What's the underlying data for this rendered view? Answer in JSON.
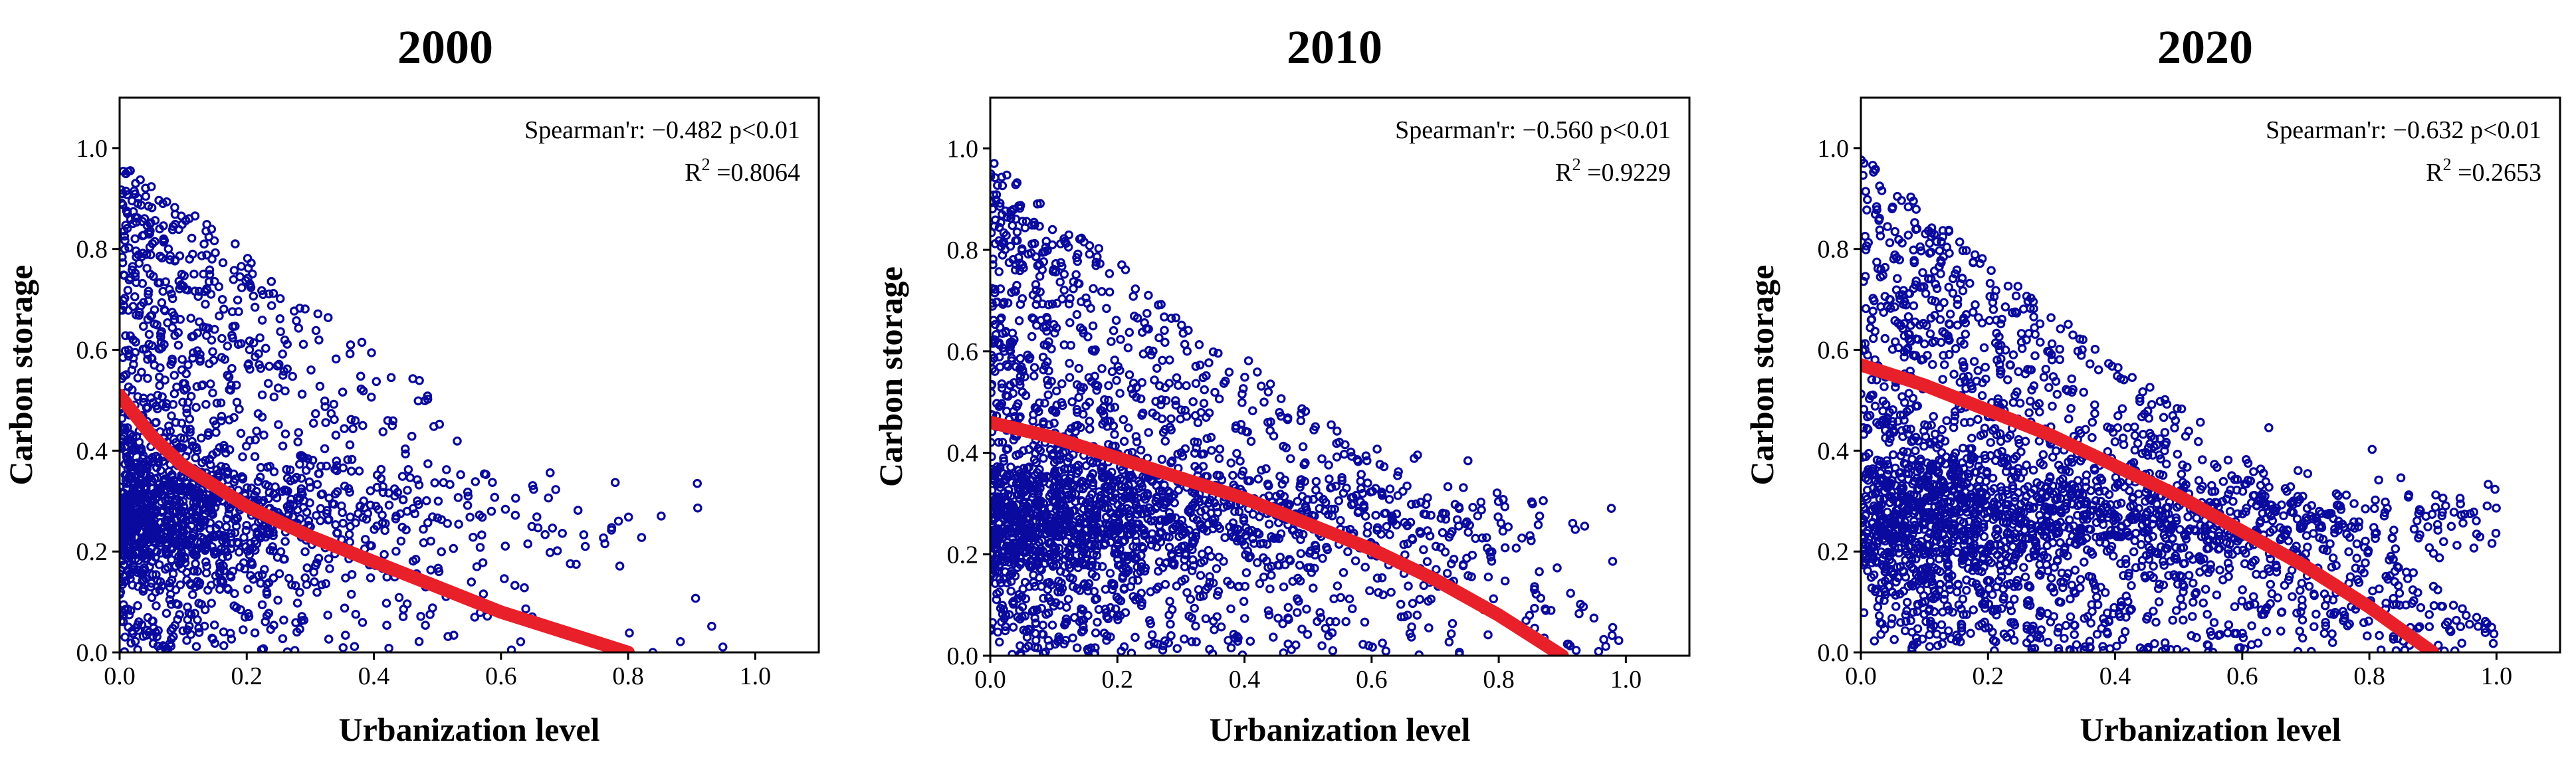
{
  "figure": {
    "palette": {
      "point": "#0a0a9e",
      "fit": "#e8202a",
      "axis": "#000000"
    }
  },
  "chart_data": [
    {
      "type": "scatter",
      "title": "2000",
      "xlabel": "Urbanization level",
      "ylabel": "Carbon storage",
      "xlim": [
        0,
        1.1
      ],
      "ylim": [
        0,
        1.1
      ],
      "xticks": [
        0.0,
        0.2,
        0.4,
        0.6,
        0.8,
        1.0
      ],
      "xtick_labels": [
        "0.0",
        "0.2",
        "0.4",
        "0.6",
        "0.8",
        "1.0"
      ],
      "yticks": [
        0.0,
        0.2,
        0.4,
        0.6,
        0.8,
        1.0
      ],
      "ytick_labels": [
        "0.0",
        "0.2",
        "0.4",
        "0.6",
        "0.8",
        "1.0"
      ],
      "annotation": {
        "spearman": "Spearman'r: −0.482  p<0.01",
        "r2_prefix": "R",
        "r2_sup": "2",
        "r2_value": " =0.8064"
      },
      "fit_line": {
        "x": [
          0.0,
          0.05,
          0.1,
          0.2,
          0.3,
          0.4,
          0.5,
          0.6,
          0.7,
          0.8
        ],
        "y": [
          0.51,
          0.43,
          0.37,
          0.29,
          0.23,
          0.18,
          0.13,
          0.08,
          0.04,
          0.0
        ]
      },
      "scatter_profile": {
        "n_points": 1800,
        "x_scale": 0.17,
        "x_max": 1.0,
        "band_y": 0.27,
        "band_spread": 0.07,
        "upper_extent": 0.95,
        "upper_decay": 1.0,
        "seed": 11
      }
    },
    {
      "type": "scatter",
      "title": "2010",
      "xlabel": "Urbanization level",
      "ylabel": "Carbon storage",
      "xlim": [
        0,
        1.1
      ],
      "ylim": [
        0,
        1.1
      ],
      "xticks": [
        0.0,
        0.2,
        0.4,
        0.6,
        0.8,
        1.0
      ],
      "xtick_labels": [
        "0.0",
        "0.2",
        "0.4",
        "0.6",
        "0.8",
        "1.0"
      ],
      "yticks": [
        0.0,
        0.2,
        0.4,
        0.6,
        0.8,
        1.0
      ],
      "ytick_labels": [
        "0.0",
        "0.2",
        "0.4",
        "0.6",
        "0.8",
        "1.0"
      ],
      "annotation": {
        "spearman": "Spearman'r: −0.560  p<0.01",
        "r2_prefix": "R",
        "r2_sup": "2",
        "r2_value": " =0.9229"
      },
      "fit_line": {
        "x": [
          0.0,
          0.1,
          0.2,
          0.3,
          0.4,
          0.5,
          0.6,
          0.7,
          0.8,
          0.9
        ],
        "y": [
          0.46,
          0.43,
          0.39,
          0.35,
          0.31,
          0.26,
          0.21,
          0.15,
          0.08,
          0.0
        ]
      },
      "scatter_profile": {
        "n_points": 2300,
        "x_scale": 0.26,
        "x_max": 1.0,
        "band_y": 0.27,
        "band_spread": 0.07,
        "upper_extent": 0.95,
        "upper_decay": 0.95,
        "seed": 23
      }
    },
    {
      "type": "scatter",
      "title": "2020",
      "xlabel": "Urbanization level",
      "ylabel": "Carbon storage",
      "xlim": [
        0,
        1.1
      ],
      "ylim": [
        0,
        1.1
      ],
      "xticks": [
        0.0,
        0.2,
        0.4,
        0.6,
        0.8,
        1.0
      ],
      "xtick_labels": [
        "0.0",
        "0.2",
        "0.4",
        "0.6",
        "0.8",
        "1.0"
      ],
      "yticks": [
        0.0,
        0.2,
        0.4,
        0.6,
        0.8,
        1.0
      ],
      "ytick_labels": [
        "0.0",
        "0.2",
        "0.4",
        "0.6",
        "0.8",
        "1.0"
      ],
      "annotation": {
        "spearman": "Spearman'r: −0.632  p<0.01",
        "r2_prefix": "R",
        "r2_sup": "2",
        "r2_value": " =0.2653"
      },
      "fit_line": {
        "x": [
          0.0,
          0.1,
          0.2,
          0.3,
          0.4,
          0.5,
          0.6,
          0.7,
          0.8,
          0.9
        ],
        "y": [
          0.57,
          0.53,
          0.48,
          0.43,
          0.37,
          0.31,
          0.24,
          0.17,
          0.09,
          0.0
        ]
      },
      "scatter_profile": {
        "n_points": 2600,
        "x_scale": 0.36,
        "x_max": 1.0,
        "band_y": 0.26,
        "band_spread": 0.08,
        "upper_extent": 0.97,
        "upper_decay": 0.9,
        "seed": 37
      }
    }
  ]
}
